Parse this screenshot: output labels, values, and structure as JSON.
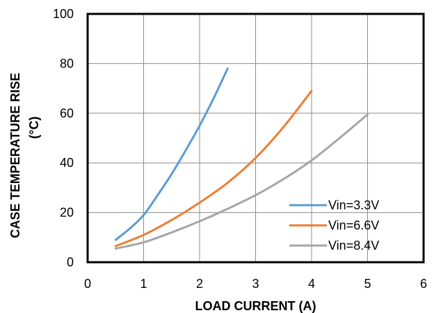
{
  "chart_data": {
    "type": "line",
    "title": "",
    "xlabel": "LOAD CURRENT (A)",
    "ylabel_lines": [
      "CASE TEMPERATURE RISE",
      "(°C)"
    ],
    "xlim": [
      0,
      6
    ],
    "ylim": [
      0,
      100
    ],
    "x_ticks": [
      0,
      1,
      2,
      3,
      4,
      5,
      6
    ],
    "y_ticks": [
      0,
      20,
      40,
      60,
      80,
      100
    ],
    "grid": true,
    "legend_position": "bottom-right",
    "series": [
      {
        "name": "Vin=3.3V",
        "color": "#5b9bd5",
        "x": [
          0.5,
          0.75,
          1.0,
          1.25,
          1.5,
          1.75,
          2.0,
          2.25,
          2.5
        ],
        "y": [
          9,
          13.5,
          19,
          27,
          35.5,
          45,
          55,
          66,
          78
        ]
      },
      {
        "name": "Vin=6.6V",
        "color": "#ed7d31",
        "x": [
          0.5,
          1.0,
          1.5,
          2.0,
          2.5,
          3.0,
          3.5,
          4.0
        ],
        "y": [
          6.5,
          11,
          17,
          24,
          32,
          42,
          54.5,
          69
        ]
      },
      {
        "name": "Vin=8.4V",
        "color": "#a5a5a5",
        "x": [
          0.5,
          1.0,
          1.5,
          2.0,
          2.5,
          3.0,
          3.5,
          4.0,
          4.5,
          5.0
        ],
        "y": [
          5.5,
          8,
          12,
          16.5,
          21.5,
          27,
          33.5,
          41,
          50,
          59.5
        ]
      }
    ]
  }
}
